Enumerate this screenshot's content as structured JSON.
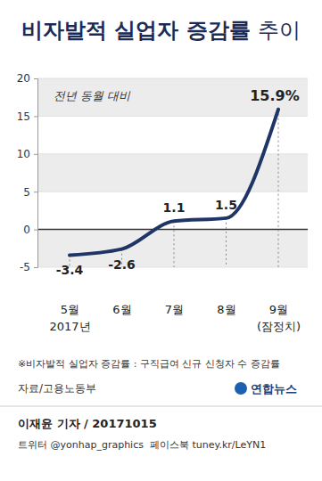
{
  "chart_data": {
    "type": "line",
    "title": "비자발적 실업자 증감률 추이",
    "annotation": "전년 동월 대비",
    "categories": [
      "5월\n2017년",
      "6월",
      "7월",
      "8월",
      "9월\n(잠정치)"
    ],
    "values": [
      -3.4,
      -2.6,
      1.1,
      1.5,
      15.9
    ],
    "value_labels": [
      "-3.4",
      "-2.6",
      "1.1",
      "1.5",
      "15.9%"
    ],
    "data_labels": true,
    "color": "#1f3566",
    "ylim": [
      -5,
      20
    ],
    "yticks": [
      -5,
      0,
      5,
      10,
      15,
      20
    ],
    "grid": true,
    "footnote": "※비자발적 실업자 증감률 : 구직급여 신규 신청자 수 증감률",
    "source": "자료/고용노동부",
    "logo": "연합뉴스",
    "credit": "이재윤 기자 / 20171015",
    "social": "트위터 @yonhap_graphics  페이스북 tuney.kr/LeYN1"
  }
}
